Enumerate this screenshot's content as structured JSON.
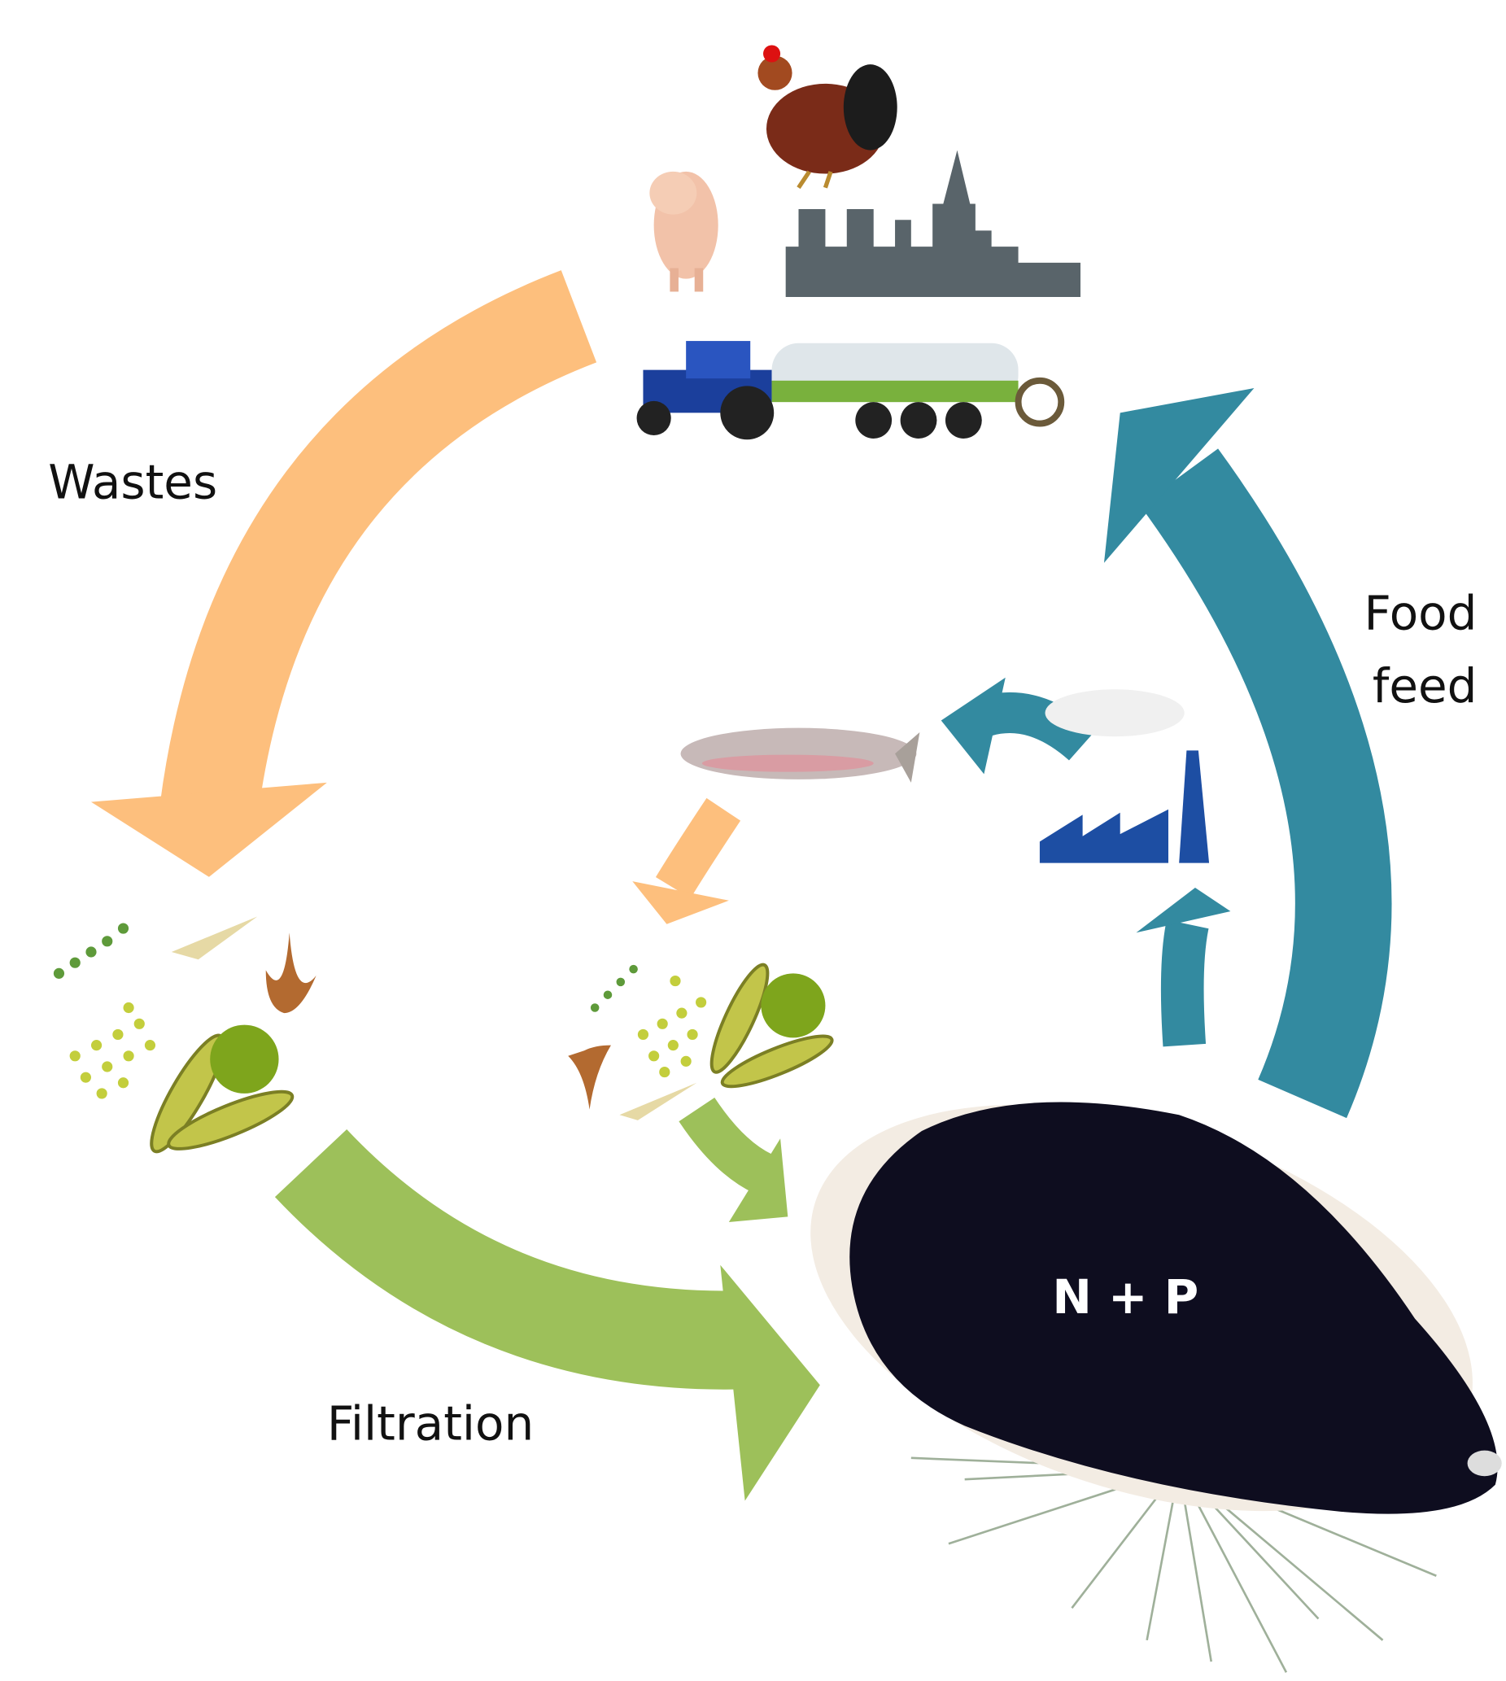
{
  "labels": {
    "wastes": "Wastes",
    "food_feed": [
      "Food",
      "feed"
    ],
    "filtration": "Filtration",
    "nutrients": "N + P"
  }
}
